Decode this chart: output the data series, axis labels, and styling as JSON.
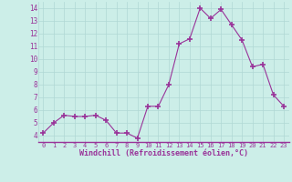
{
  "x": [
    0,
    1,
    2,
    3,
    4,
    5,
    6,
    7,
    8,
    9,
    10,
    11,
    12,
    13,
    14,
    15,
    16,
    17,
    18,
    19,
    20,
    21,
    22,
    23
  ],
  "y": [
    4.2,
    5.0,
    5.6,
    5.5,
    5.5,
    5.6,
    5.2,
    4.2,
    4.2,
    3.8,
    6.3,
    6.3,
    8.0,
    11.2,
    11.6,
    14.0,
    13.2,
    13.9,
    12.7,
    11.5,
    9.4,
    9.6,
    7.2,
    6.3
  ],
  "line_color": "#993399",
  "marker": "+",
  "marker_size": 4,
  "background_color": "#cceee8",
  "grid_color": "#b0d8d4",
  "xlabel": "Windchill (Refroidissement éolien,°C)",
  "xlabel_color": "#993399",
  "tick_color": "#993399",
  "ylim": [
    3.5,
    14.5
  ],
  "yticks": [
    4,
    5,
    6,
    7,
    8,
    9,
    10,
    11,
    12,
    13,
    14
  ],
  "xlim": [
    -0.5,
    23.5
  ],
  "xticks": [
    0,
    1,
    2,
    3,
    4,
    5,
    6,
    7,
    8,
    9,
    10,
    11,
    12,
    13,
    14,
    15,
    16,
    17,
    18,
    19,
    20,
    21,
    22,
    23
  ],
  "spine_color": "#993399",
  "axisbottom_color": "#993399"
}
